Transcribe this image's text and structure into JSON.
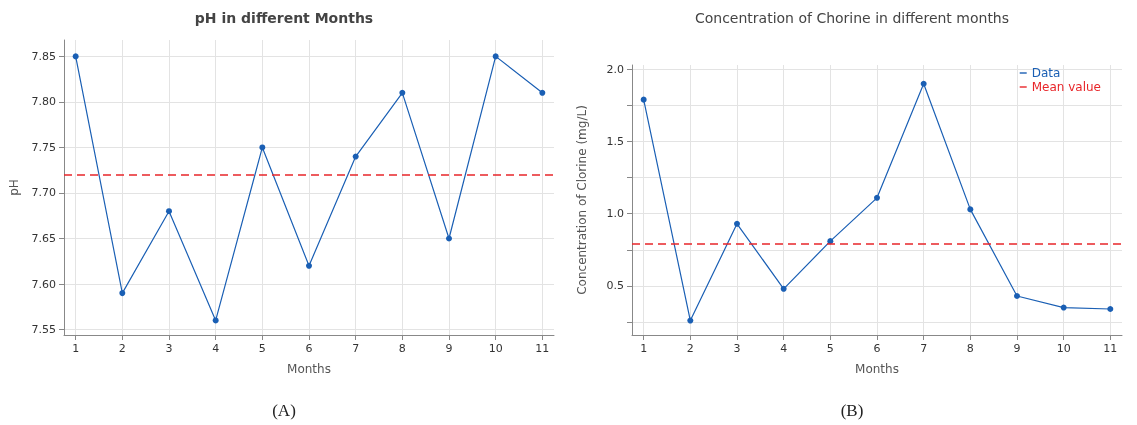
{
  "chart_data": [
    {
      "type": "line",
      "title": "pH in different Months",
      "xlabel": "Months",
      "ylabel": "pH",
      "x": [
        1,
        2,
        3,
        4,
        5,
        6,
        7,
        8,
        9,
        10,
        11
      ],
      "series": [
        {
          "color": "#1a5fb4",
          "values": [
            7.85,
            7.59,
            7.68,
            7.56,
            7.75,
            7.62,
            7.74,
            7.81,
            7.65,
            7.85,
            7.81
          ]
        }
      ],
      "xlim": [
        0.75,
        11.25
      ],
      "xticks": [
        1,
        2,
        3,
        4,
        5,
        6,
        7,
        8,
        9,
        10,
        11
      ],
      "ylim": [
        7.544,
        7.868
      ],
      "yticks": [
        7.55,
        {
          "value": 7.6,
          "label": "7.60"
        },
        7.65,
        {
          "value": 7.7,
          "label": "7.70"
        },
        7.75,
        {
          "value": 7.8,
          "label": "7.80"
        },
        7.85
      ],
      "ref_lines": [
        {
          "axis": "y",
          "value": 7.719,
          "color": "#e8262a",
          "line_style": "dashed"
        }
      ],
      "grid": true,
      "marker": "circle",
      "line_style": "solid",
      "annotations": [
        "(A)"
      ]
    },
    {
      "type": "line",
      "title": "Concentration of Chorine in different months",
      "xlabel": "Months",
      "ylabel": "Concentration of Clorine (mg/L)",
      "x": [
        1,
        2,
        3,
        4,
        5,
        6,
        7,
        8,
        9,
        10,
        11
      ],
      "series": [
        {
          "name": "Data",
          "color": "#1a5fb4",
          "values": [
            1.79,
            0.26,
            0.93,
            0.48,
            0.81,
            1.11,
            1.9,
            1.03,
            0.43,
            0.35,
            0.34
          ]
        }
      ],
      "xlim": [
        0.75,
        11.25
      ],
      "xticks": [
        1,
        2,
        3,
        4,
        5,
        6,
        7,
        8,
        9,
        10,
        11
      ],
      "ylim": [
        0.16,
        2.03
      ],
      "yticks": [
        {
          "value": 0.25,
          "label": null
        },
        0.5,
        {
          "value": 0.75,
          "label": null
        },
        {
          "value": 1,
          "label": "1.0"
        },
        {
          "value": 1.25,
          "label": null
        },
        1.5,
        {
          "value": 1.75,
          "label": null
        },
        {
          "value": 2,
          "label": "2.0"
        }
      ],
      "ref_lines": [
        {
          "axis": "y",
          "value": 0.79,
          "label": "Mean value",
          "color": "#e8262a",
          "line_style": "dashed"
        }
      ],
      "grid": true,
      "legend": "top right",
      "marker": "circle",
      "line_style": "solid",
      "annotations": [
        "(B)"
      ]
    }
  ]
}
